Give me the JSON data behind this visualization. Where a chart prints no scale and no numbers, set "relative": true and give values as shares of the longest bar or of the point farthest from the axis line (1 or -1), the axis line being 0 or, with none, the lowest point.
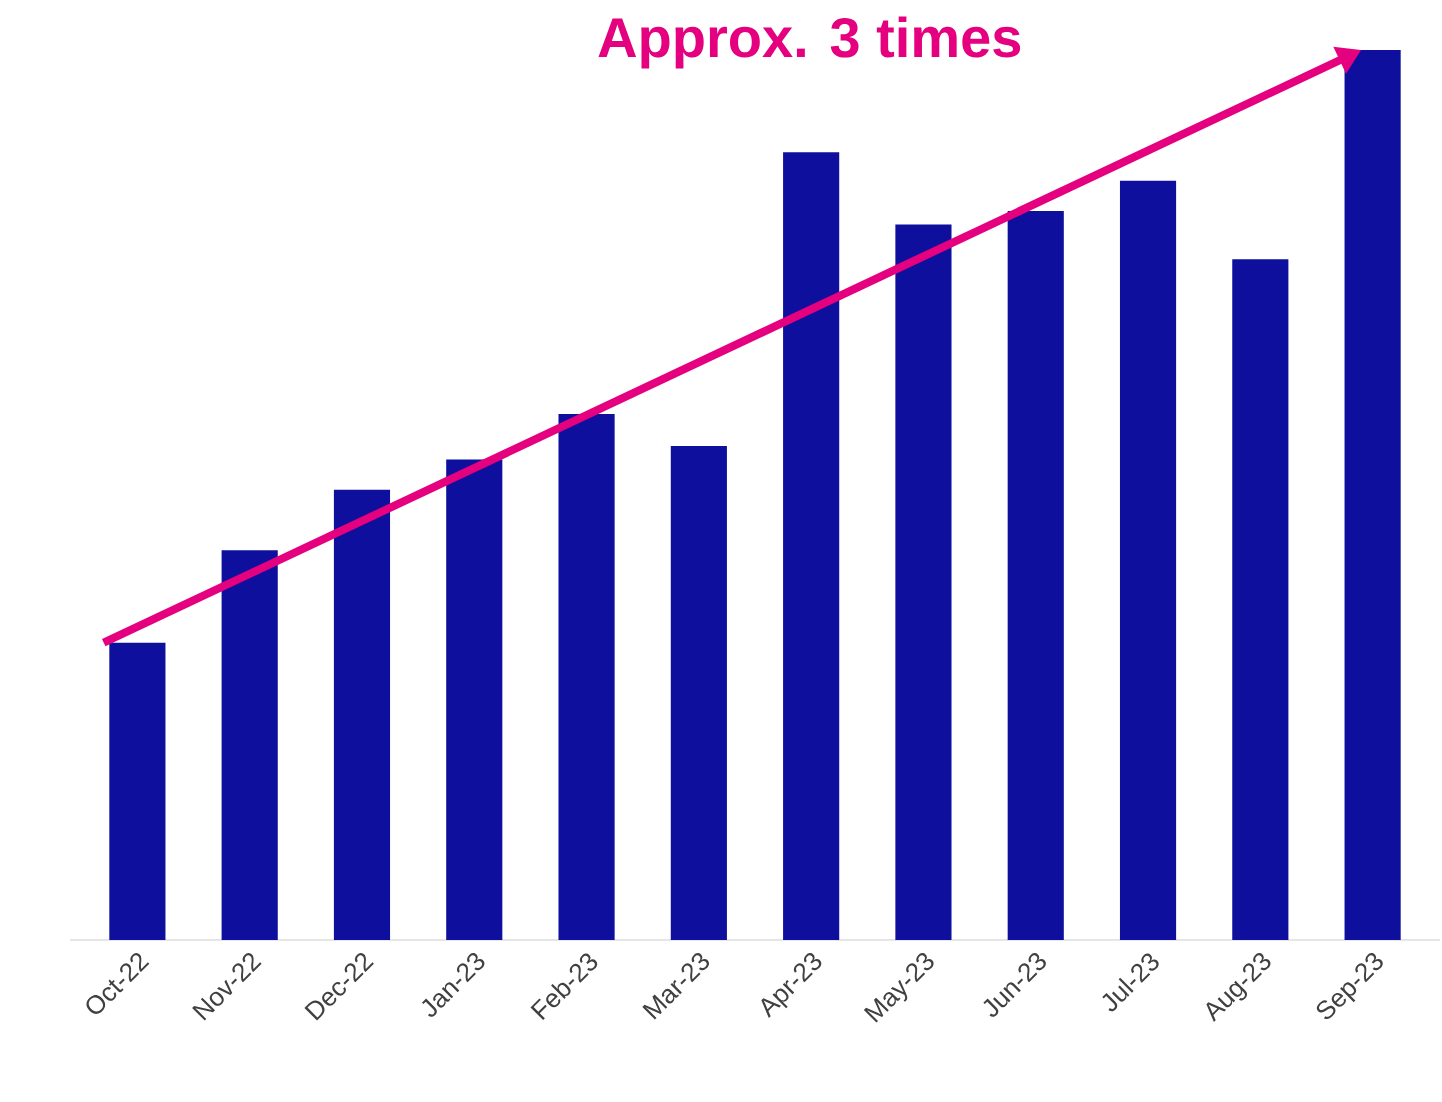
{
  "chart_data": {
    "type": "bar",
    "relative": true,
    "color": "#0f0f9e",
    "categories": [
      "Oct-22",
      "Nov-22",
      "Dec-22",
      "Jan-23",
      "Feb-23",
      "Mar-23",
      "Apr-23",
      "May-23",
      "Jun-23",
      "Jul-23",
      "Aug-23",
      "Sep-23"
    ],
    "values": [
      0.334,
      0.438,
      0.506,
      0.54,
      0.591,
      0.555,
      0.885,
      0.804,
      0.819,
      0.853,
      0.765,
      1
    ],
    "annotations": [
      "Approx. 3 times"
    ]
  }
}
